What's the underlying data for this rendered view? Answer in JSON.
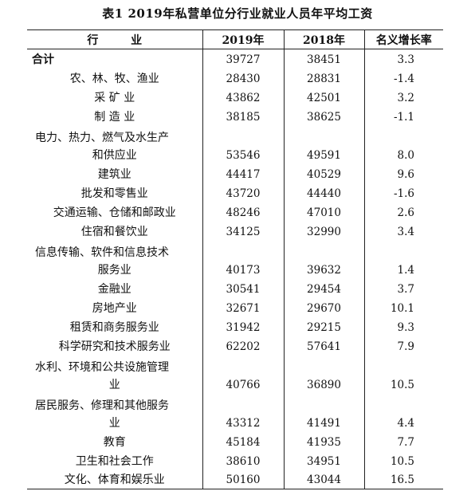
{
  "title": "表1   2019年私营单位分行业就业人员年平均工资",
  "headers": [
    "行  业",
    "2019年",
    "2018年",
    "名义增长率"
  ],
  "rows": [
    {
      "name": "合计",
      "y2019": "39727",
      "y2018": "38451",
      "rate": "3.3"
    },
    {
      "name": "农、林、牧、渔业",
      "y2019": "28430",
      "y2018": "28831",
      "rate": "-1.4"
    },
    {
      "name": "采 矿 业",
      "y2019": "43862",
      "y2018": "42501",
      "rate": "3.2"
    },
    {
      "name": "制 造 业",
      "y2019": "38185",
      "y2018": "38625",
      "rate": "-1.1"
    },
    {
      "name_line1": "电力、热力、燃气及水生产",
      "name_line2": "和供应业",
      "y2019": "53546",
      "y2018": "49591",
      "rate": "8.0"
    },
    {
      "name": "建筑业",
      "y2019": "44417",
      "y2018": "40529",
      "rate": "9.6"
    },
    {
      "name": "批发和零售业",
      "y2019": "43720",
      "y2018": "44440",
      "rate": "-1.6"
    },
    {
      "name": "交通运输、仓储和邮政业",
      "y2019": "48246",
      "y2018": "47010",
      "rate": "2.6"
    },
    {
      "name": "住宿和餐饮业",
      "y2019": "34125",
      "y2018": "32990",
      "rate": "3.4"
    },
    {
      "name_line1": "信息传输、软件和信息技术",
      "name_line2": "服务业",
      "y2019": "40173",
      "y2018": "39632",
      "rate": "1.4"
    },
    {
      "name": "金融业",
      "y2019": "30541",
      "y2018": "29454",
      "rate": "3.7"
    },
    {
      "name": "房地产业",
      "y2019": "32671",
      "y2018": "29670",
      "rate": "10.1"
    },
    {
      "name": "租赁和商务服务业",
      "y2019": "31942",
      "y2018": "29215",
      "rate": "9.3"
    },
    {
      "name": "科学研究和技术服务业",
      "y2019": "62202",
      "y2018": "57641",
      "rate": "7.9"
    },
    {
      "name_line1": "水利、环境和公共设施管理",
      "name_line2": "业",
      "y2019": "40766",
      "y2018": "36890",
      "rate": "10.5"
    },
    {
      "name_line1": "居民服务、修理和其他服务",
      "name_line2": "业",
      "y2019": "43312",
      "y2018": "41491",
      "rate": "4.4"
    },
    {
      "name": "教育",
      "y2019": "45184",
      "y2018": "41935",
      "rate": "7.7"
    },
    {
      "name": "卫生和社会工作",
      "y2019": "38610",
      "y2018": "34951",
      "rate": "10.5"
    },
    {
      "name": "文化、体育和娱乐业",
      "y2019": "50160",
      "y2018": "43044",
      "rate": "16.5"
    }
  ]
}
